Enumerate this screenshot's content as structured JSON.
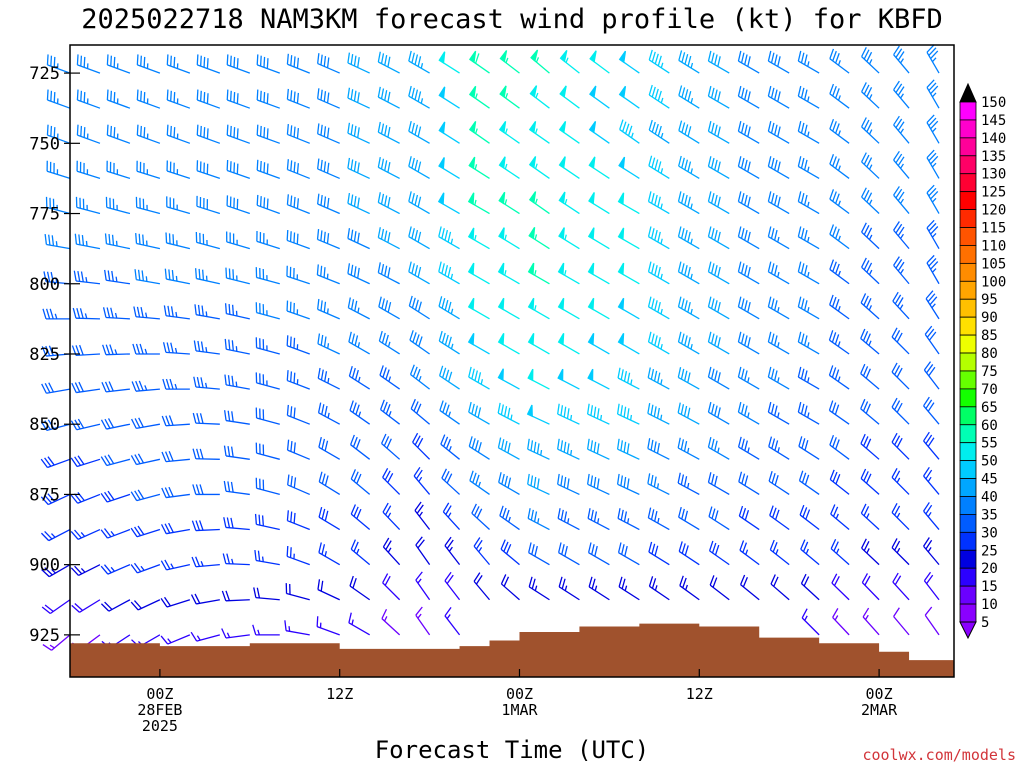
{
  "chart_data": {
    "type": "wind-barb time-height profile",
    "title": "2025022718 NAM3KM forecast wind profile (kt) for KBFD",
    "xlabel": "Forecast Time (UTC)",
    "ylabel": "",
    "credit": "coolwx.com/models",
    "y_axis": {
      "unit": "hPa",
      "ticks": [
        725,
        750,
        775,
        800,
        825,
        850,
        875,
        900,
        925
      ],
      "range": [
        940,
        715
      ],
      "levels": [
        725,
        737.5,
        750,
        762.5,
        775,
        787.5,
        800,
        812.5,
        825,
        837.5,
        850,
        862.5,
        875,
        887.5,
        900,
        912.5,
        925
      ]
    },
    "x_axis": {
      "ticks": [
        {
          "hour": 0,
          "line1": "00Z",
          "line2": "28FEB",
          "line3": "2025"
        },
        {
          "hour": 12,
          "line1": "12Z",
          "line2": "",
          "line3": ""
        },
        {
          "hour": 24,
          "line1": "00Z",
          "line2": "1MAR",
          "line3": ""
        },
        {
          "hour": 36,
          "line1": "12Z",
          "line2": "",
          "line3": ""
        },
        {
          "hour": 48,
          "line1": "00Z",
          "line2": "2MAR",
          "line3": ""
        }
      ],
      "range": [
        -6,
        53
      ]
    },
    "colorbar": {
      "labels": [
        5,
        10,
        15,
        20,
        25,
        30,
        35,
        40,
        45,
        50,
        55,
        60,
        65,
        70,
        75,
        80,
        85,
        90,
        95,
        100,
        105,
        110,
        115,
        120,
        125,
        130,
        135,
        140,
        145,
        150
      ],
      "colors": [
        "#8a00ff",
        "#6b00ff",
        "#2c00ff",
        "#0000e0",
        "#0032ff",
        "#005cff",
        "#0080ff",
        "#00a6ff",
        "#00ccff",
        "#00eeee",
        "#00ffb4",
        "#00ff66",
        "#14ff00",
        "#66ff00",
        "#b4ff00",
        "#eeff00",
        "#ffe000",
        "#ffc000",
        "#ffa500",
        "#ff8c00",
        "#ff7000",
        "#ff5400",
        "#ff2a00",
        "#ff0000",
        "#ff0033",
        "#ff0066",
        "#ff0099",
        "#ff00cc",
        "#ff00ff",
        "#000000"
      ]
    },
    "terrain": {
      "color": "#a0522d",
      "surface_pressure": [
        {
          "hour": -6,
          "p": 928
        },
        {
          "hour": 0,
          "p": 929
        },
        {
          "hour": 6,
          "p": 928
        },
        {
          "hour": 10,
          "p": 928
        },
        {
          "hour": 12,
          "p": 930
        },
        {
          "hour": 18,
          "p": 930
        },
        {
          "hour": 20,
          "p": 929
        },
        {
          "hour": 22,
          "p": 927
        },
        {
          "hour": 24,
          "p": 924
        },
        {
          "hour": 28,
          "p": 922
        },
        {
          "hour": 32,
          "p": 921
        },
        {
          "hour": 36,
          "p": 922
        },
        {
          "hour": 40,
          "p": 926
        },
        {
          "hour": 44,
          "p": 928
        },
        {
          "hour": 48,
          "p": 931
        },
        {
          "hour": 50,
          "p": 934
        },
        {
          "hour": 53,
          "p": 935
        }
      ]
    },
    "wind_field": {
      "time_step_hours": 2,
      "start_hour": -6,
      "end_hour": 52,
      "description": "wind barbs in knots at each pressure level and forecast hour",
      "anchors_hour": [
        -6,
        0,
        8,
        14,
        18,
        22,
        26,
        32,
        38,
        44,
        50,
        52
      ],
      "rows": [
        {
          "p": 725,
          "dir": [
            290,
            290,
            290,
            295,
            300,
            305,
            310,
            305,
            300,
            300,
            320,
            330
          ],
          "spd": [
            36,
            37,
            38,
            40,
            43,
            58,
            55,
            48,
            40,
            37,
            35,
            35
          ]
        },
        {
          "p": 750,
          "dir": [
            290,
            290,
            290,
            295,
            300,
            305,
            305,
            305,
            300,
            300,
            320,
            330
          ],
          "spd": [
            36,
            37,
            38,
            40,
            42,
            55,
            53,
            47,
            40,
            37,
            35,
            35
          ]
        },
        {
          "p": 775,
          "dir": [
            285,
            285,
            290,
            295,
            300,
            300,
            305,
            300,
            300,
            300,
            320,
            330
          ],
          "spd": [
            36,
            37,
            38,
            40,
            42,
            55,
            55,
            50,
            40,
            37,
            35,
            35
          ]
        },
        {
          "p": 800,
          "dir": [
            275,
            280,
            285,
            295,
            300,
            300,
            300,
            300,
            300,
            300,
            320,
            330
          ],
          "spd": [
            34,
            35,
            36,
            38,
            40,
            52,
            55,
            50,
            40,
            35,
            33,
            33
          ]
        },
        {
          "p": 825,
          "dir": [
            265,
            270,
            285,
            300,
            305,
            300,
            300,
            300,
            300,
            300,
            315,
            325
          ],
          "spd": [
            32,
            33,
            34,
            36,
            38,
            48,
            52,
            48,
            40,
            35,
            32,
            32
          ]
        },
        {
          "p": 850,
          "dir": [
            255,
            260,
            285,
            305,
            310,
            300,
            295,
            295,
            300,
            300,
            315,
            320
          ],
          "spd": [
            30,
            32,
            32,
            33,
            32,
            42,
            48,
            45,
            38,
            33,
            30,
            30
          ]
        },
        {
          "p": 875,
          "dir": [
            245,
            255,
            285,
            310,
            320,
            305,
            295,
            295,
            300,
            305,
            315,
            320
          ],
          "spd": [
            28,
            30,
            30,
            30,
            25,
            35,
            40,
            38,
            32,
            30,
            27,
            27
          ]
        },
        {
          "p": 900,
          "dir": [
            240,
            250,
            280,
            310,
            325,
            320,
            300,
            300,
            305,
            310,
            315,
            320
          ],
          "spd": [
            24,
            26,
            26,
            25,
            20,
            25,
            30,
            30,
            28,
            26,
            24,
            24
          ]
        },
        {
          "p": 925,
          "dir": [
            230,
            240,
            270,
            300,
            325,
            320,
            305,
            305,
            310,
            315,
            320,
            325
          ],
          "spd": [
            14,
            16,
            16,
            15,
            14,
            16,
            18,
            18,
            16,
            15,
            12,
            12
          ]
        }
      ]
    }
  }
}
